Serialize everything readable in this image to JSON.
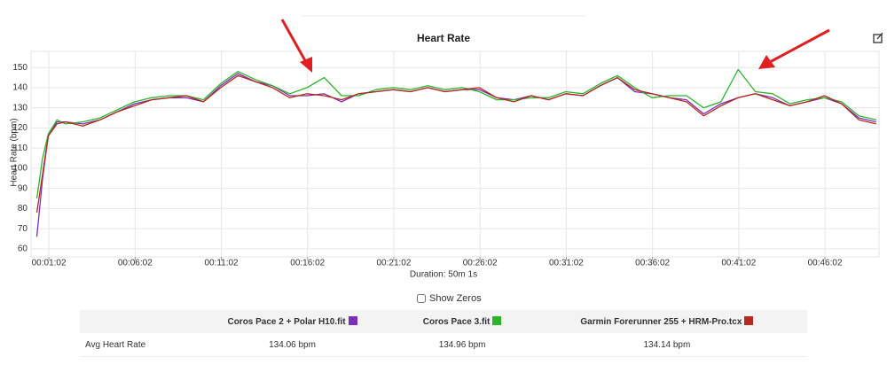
{
  "chart_data": {
    "type": "line",
    "title": "Heart Rate",
    "y_label": "Heart Rate (bpm)",
    "x_label": "Duration: 50m 1s",
    "x": [
      20,
      40,
      60,
      90,
      120,
      180,
      240,
      300,
      360,
      420,
      480,
      540,
      600,
      660,
      720,
      780,
      840,
      900,
      960,
      1020,
      1080,
      1140,
      1200,
      1260,
      1320,
      1380,
      1440,
      1500,
      1560,
      1620,
      1680,
      1740,
      1800,
      1860,
      1920,
      1980,
      2040,
      2100,
      2160,
      2220,
      2280,
      2340,
      2400,
      2460,
      2520,
      2580,
      2640,
      2700,
      2760,
      2820,
      2880,
      2940
    ],
    "series": [
      {
        "name": "Coros Pace 2 + Polar H10.fit",
        "color": "#7b2fbf",
        "values": [
          66,
          95,
          116,
          123,
          123,
          122,
          124,
          128,
          132,
          134,
          135,
          135,
          133,
          141,
          147,
          143,
          141,
          136,
          136,
          137,
          133,
          137,
          138,
          139,
          138,
          140,
          138,
          139,
          139,
          135,
          134,
          136,
          134,
          137,
          136,
          141,
          145,
          138,
          137,
          135,
          134,
          127,
          132,
          135,
          137,
          135,
          131,
          133,
          135,
          132,
          125,
          123
        ]
      },
      {
        "name": "Coros Pace 3.fit",
        "color": "#2bb52b",
        "values": [
          85,
          105,
          117,
          124,
          122,
          123,
          125,
          129,
          133,
          135,
          136,
          136,
          134,
          142,
          148,
          144,
          141,
          137,
          140,
          145,
          136,
          136,
          139,
          140,
          139,
          141,
          139,
          140,
          138,
          134,
          134,
          135,
          135,
          138,
          137,
          142,
          146,
          140,
          135,
          136,
          136,
          130,
          133,
          149,
          138,
          137,
          132,
          134,
          135,
          133,
          126,
          124
        ]
      },
      {
        "name": "Garmin Forerunner 255 + HRM-Pro.tcx",
        "color": "#b52a1c",
        "values": [
          78,
          97,
          116,
          122,
          123,
          121,
          124,
          128,
          131,
          134,
          135,
          136,
          133,
          140,
          146,
          143,
          140,
          135,
          137,
          136,
          134,
          137,
          138,
          139,
          138,
          140,
          138,
          139,
          140,
          135,
          133,
          136,
          134,
          137,
          136,
          141,
          145,
          139,
          137,
          135,
          133,
          126,
          131,
          135,
          137,
          134,
          131,
          133,
          136,
          132,
          124,
          122
        ]
      }
    ],
    "xlim": [
      0,
      2950
    ],
    "ylim": [
      56,
      158
    ],
    "xticks": [
      {
        "value": 62,
        "label": "00:01:02"
      },
      {
        "value": 362,
        "label": "00:06:02"
      },
      {
        "value": 662,
        "label": "00:11:02"
      },
      {
        "value": 962,
        "label": "00:16:02"
      },
      {
        "value": 1262,
        "label": "00:21:02"
      },
      {
        "value": 1562,
        "label": "00:26:02"
      },
      {
        "value": 1862,
        "label": "00:31:02"
      },
      {
        "value": 2162,
        "label": "00:36:02"
      },
      {
        "value": 2462,
        "label": "00:41:02"
      },
      {
        "value": 2762,
        "label": "00:46:02"
      }
    ],
    "yticks": [
      60,
      70,
      80,
      90,
      100,
      110,
      120,
      130,
      140,
      150
    ],
    "grid": true
  },
  "controls": {
    "show_zeros": "Show Zeros"
  },
  "table": {
    "rows": [
      [
        "Avg Heart Rate",
        "134.06 bpm",
        "134.96 bpm",
        "134.14 bpm"
      ]
    ]
  }
}
